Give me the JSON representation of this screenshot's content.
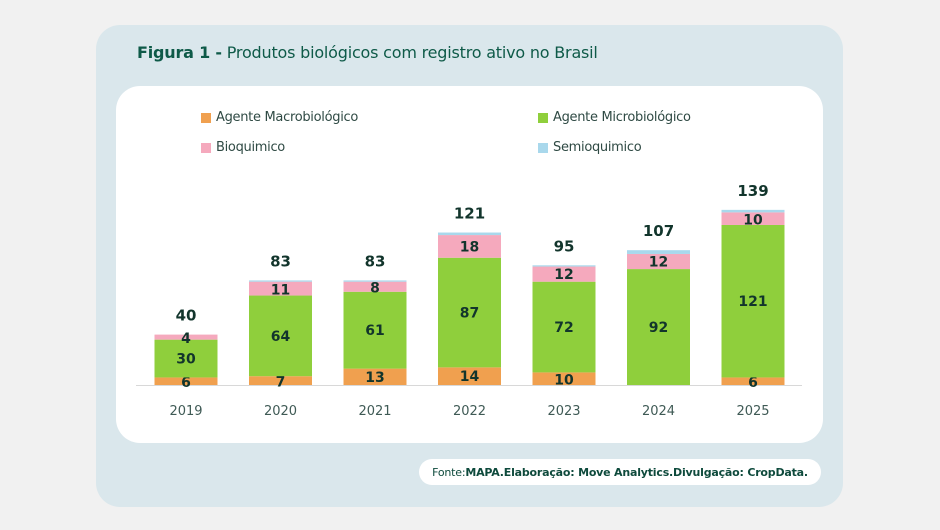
{
  "figure": {
    "title_prefix": "Figura 1 -",
    "title_text": " Produtos biológicos com registro ativo no Brasil"
  },
  "source": {
    "label": "Fonte: ",
    "mapa": "MAPA.",
    "elaboracao": " Elaboração: Move Analytics.",
    "divulgacao": " Divulgação: CropData."
  },
  "colors": {
    "macro": "#f0a04f",
    "micro": "#8fcf3c",
    "bio": "#f5a9bd",
    "semi": "#a9d8ec",
    "label": "#12352c",
    "axis_label": "#3f5a55",
    "baseline": "#d8d8d8"
  },
  "chart_data": {
    "type": "bar",
    "stacked": true,
    "title": "Figura 1 - Produtos biológicos com registro ativo no Brasil",
    "xlabel": "",
    "ylabel": "",
    "categories": [
      "2019",
      "2020",
      "2021",
      "2022",
      "2023",
      "2024",
      "2025"
    ],
    "series": [
      {
        "key": "macro",
        "name": "Agente Macrobiológico",
        "values": [
          6,
          7,
          13,
          14,
          10,
          0,
          6
        ],
        "labels": [
          "6",
          "7",
          "13",
          "14",
          "10",
          "",
          "6"
        ]
      },
      {
        "key": "micro",
        "name": "Agente Microbiológico",
        "values": [
          30,
          64,
          61,
          87,
          72,
          92,
          121
        ],
        "labels": [
          "30",
          "64",
          "61",
          "87",
          "72",
          "92",
          "121"
        ]
      },
      {
        "key": "bio",
        "name": "Bioquimico",
        "values": [
          4,
          11,
          8,
          18,
          12,
          12,
          10
        ],
        "labels": [
          "4",
          "11",
          "8",
          "18",
          "12",
          "12",
          "10"
        ]
      },
      {
        "key": "semi",
        "name": "Semioquimico",
        "values": [
          0,
          1,
          1,
          2,
          1,
          3,
          2
        ],
        "labels": [
          "",
          "",
          "",
          "",
          "",
          "",
          ""
        ]
      }
    ],
    "totals": [
      "40",
      "83",
      "83",
      "121",
      "95",
      "107",
      "139"
    ],
    "ylim": [
      0,
      139
    ],
    "grid": false,
    "legend_position": "top"
  }
}
